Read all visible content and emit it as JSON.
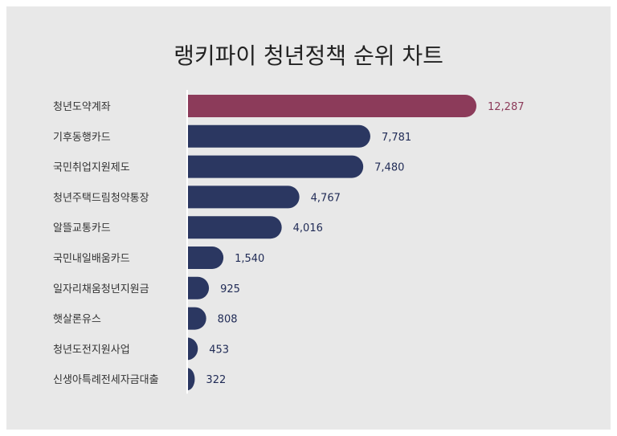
{
  "title": "랭키파이 청년정책 순위 차트",
  "colors": {
    "highlight": "#8c3b5a",
    "bar": "#2b3761",
    "label": "#333333",
    "value_highlight": "#8c3b5a",
    "value": "#1f2a55",
    "axis": "#ffffff",
    "background": "#e8e8e8"
  },
  "chart_data": {
    "type": "bar",
    "orientation": "horizontal",
    "categories": [
      "청년도약계좌",
      "기후동행카드",
      "국민취업지원제도",
      "청년주택드림청약통장",
      "알뜰교통카드",
      "국민내일배움카드",
      "일자리채움청년지원금",
      "햇살론유스",
      "청년도전지원사업",
      "신생아특례전세자금대출"
    ],
    "values": [
      12287,
      7781,
      7480,
      4767,
      4016,
      1540,
      925,
      808,
      453,
      322
    ],
    "value_labels": [
      "12,287",
      "7,781",
      "7,480",
      "4,767",
      "4,016",
      "1,540",
      "925",
      "808",
      "453",
      "322"
    ],
    "highlight_index": 0,
    "xlim": [
      0,
      12287
    ],
    "grid": false,
    "legend": false
  }
}
